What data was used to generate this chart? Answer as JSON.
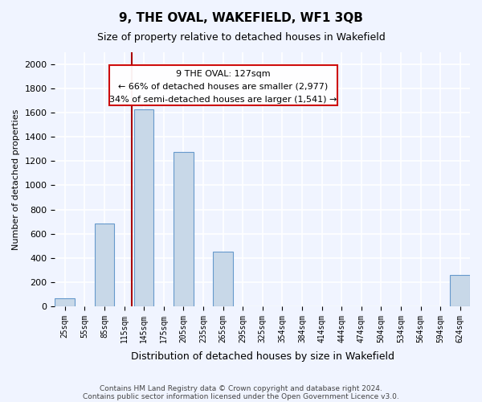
{
  "title": "9, THE OVAL, WAKEFIELD, WF1 3QB",
  "subtitle": "Size of property relative to detached houses in Wakefield",
  "xlabel": "Distribution of detached houses by size in Wakefield",
  "ylabel": "Number of detached properties",
  "bar_color": "#c8d8e8",
  "bar_edge_color": "#6699cc",
  "background_color": "#f0f4ff",
  "grid_color": "#ffffff",
  "annotation_box_color": "#cc0000",
  "vline_color": "#aa0000",
  "categories": [
    "25sqm",
    "55sqm",
    "85sqm",
    "115sqm",
    "145sqm",
    "175sqm",
    "205sqm",
    "235sqm",
    "265sqm",
    "295sqm",
    "325sqm",
    "354sqm",
    "384sqm",
    "414sqm",
    "444sqm",
    "474sqm",
    "504sqm",
    "534sqm",
    "564sqm",
    "594sqm",
    "624sqm"
  ],
  "values": [
    67,
    0,
    685,
    0,
    1625,
    0,
    1275,
    0,
    450,
    0,
    0,
    0,
    0,
    0,
    0,
    0,
    0,
    0,
    0,
    0,
    260
  ],
  "ylim": [
    0,
    2100
  ],
  "yticks": [
    0,
    200,
    400,
    600,
    800,
    1000,
    1200,
    1400,
    1600,
    1800,
    2000
  ],
  "property_size": 127,
  "property_name": "9 THE OVAL: 127sqm",
  "annotation_line1": "← 66% of detached houses are smaller (2,977)",
  "annotation_line2": "34% of semi-detached houses are larger (1,541) →",
  "vline_x": 6.5,
  "footnote1": "Contains HM Land Registry data © Crown copyright and database right 2024.",
  "footnote2": "Contains public sector information licensed under the Open Government Licence v3.0."
}
